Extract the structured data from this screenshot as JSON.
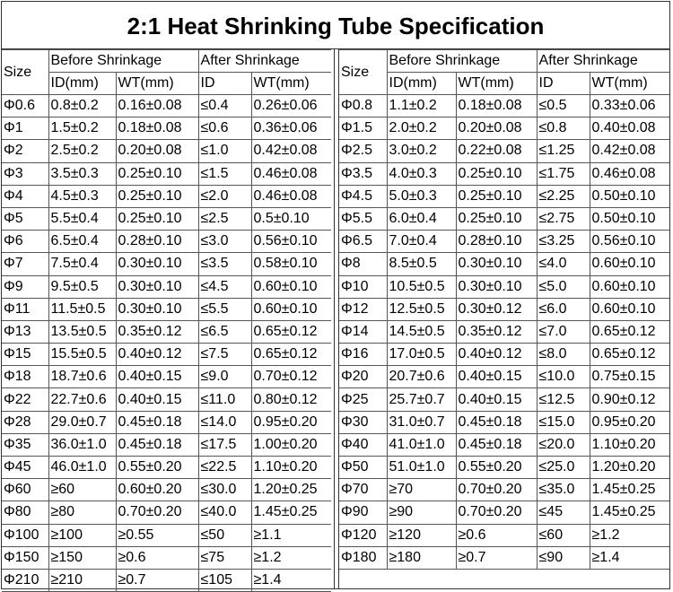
{
  "title": "2:1 Heat Shrinking Tube Specification",
  "tables": [
    {
      "headers": {
        "size": "Size",
        "before": "Before Shrinkage",
        "after": "After Shrinkage",
        "columns": [
          "ID(mm)",
          "WT(mm)",
          "ID",
          "WT(mm)"
        ]
      },
      "rows": [
        [
          "Φ0.6",
          "0.8±0.2",
          "0.16±0.08",
          "≤0.4",
          "0.26±0.06"
        ],
        [
          "Φ1",
          "1.5±0.2",
          "0.18±0.08",
          "≤0.6",
          "0.36±0.06"
        ],
        [
          "Φ2",
          "2.5±0.2",
          "0.20±0.08",
          "≤1.0",
          "0.42±0.08"
        ],
        [
          "Φ3",
          "3.5±0.3",
          "0.25±0.10",
          "≤1.5",
          "0.46±0.08"
        ],
        [
          "Φ4",
          "4.5±0.3",
          "0.25±0.10",
          "≤2.0",
          "0.46±0.08"
        ],
        [
          "Φ5",
          "5.5±0.4",
          "0.25±0.10",
          "≤2.5",
          "0.5±0.10"
        ],
        [
          "Φ6",
          "6.5±0.4",
          "0.28±0.10",
          "≤3.0",
          "0.56±0.10"
        ],
        [
          "Φ7",
          "7.5±0.4",
          "0.30±0.10",
          "≤3.5",
          "0.58±0.10"
        ],
        [
          "Φ9",
          "9.5±0.5",
          "0.30±0.10",
          "≤4.5",
          "0.60±0.10"
        ],
        [
          "Φ11",
          "11.5±0.5",
          "0.30±0.10",
          "≤5.5",
          "0.60±0.10"
        ],
        [
          "Φ13",
          "13.5±0.5",
          "0.35±0.12",
          "≤6.5",
          "0.65±0.12"
        ],
        [
          "Φ15",
          "15.5±0.5",
          "0.40±0.12",
          "≤7.5",
          "0.65±0.12"
        ],
        [
          "Φ18",
          "18.7±0.6",
          "0.40±0.15",
          "≤9.0",
          "0.70±0.12"
        ],
        [
          "Φ22",
          "22.7±0.6",
          "0.40±0.15",
          "≤11.0",
          "0.80±0.12"
        ],
        [
          "Φ28",
          "29.0±0.7",
          "0.45±0.18",
          "≤14.0",
          "0.95±0.20"
        ],
        [
          "Φ35",
          "36.0±1.0",
          "0.45±0.18",
          "≤17.5",
          "1.00±0.20"
        ],
        [
          "Φ45",
          "46.0±1.0",
          "0.55±0.20",
          "≤22.5",
          "1.10±0.20"
        ],
        [
          "Φ60",
          "≥60",
          "0.60±0.20",
          "≤30.0",
          "1.20±0.25"
        ],
        [
          "Φ80",
          "≥80",
          "0.70±0.20",
          "≤40.0",
          "1.45±0.25"
        ],
        [
          "Φ100",
          "≥100",
          "≥0.55",
          "≤50",
          "≥1.1"
        ],
        [
          "Φ150",
          "≥150",
          "≥0.6",
          "≤75",
          "≥1.2"
        ],
        [
          "Φ210",
          "≥210",
          "≥0.7",
          "≤105",
          "≥1.4"
        ]
      ]
    },
    {
      "headers": {
        "size": "Size",
        "before": "Before Shrinkage",
        "after": "After Shrinkage",
        "columns": [
          "ID(mm)",
          "WT(mm)",
          "ID",
          "WT(mm)"
        ]
      },
      "rows": [
        [
          "Φ0.8",
          "1.1±0.2",
          "0.18±0.08",
          "≤0.5",
          "0.33±0.06"
        ],
        [
          "Φ1.5",
          "2.0±0.2",
          "0.20±0.08",
          "≤0.8",
          "0.40±0.08"
        ],
        [
          "Φ2.5",
          "3.0±0.2",
          "0.22±0.08",
          "≤1.25",
          "0.42±0.08"
        ],
        [
          "Φ3.5",
          "4.0±0.3",
          "0.25±0.10",
          "≤1.75",
          "0.46±0.08"
        ],
        [
          "Φ4.5",
          "5.0±0.3",
          "0.25±0.10",
          "≤2.25",
          "0.50±0.10"
        ],
        [
          "Φ5.5",
          "6.0±0.4",
          "0.25±0.10",
          "≤2.75",
          "0.50±0.10"
        ],
        [
          "Φ6.5",
          "7.0±0.4",
          "0.28±0.10",
          "≤3.25",
          "0.56±0.10"
        ],
        [
          "Φ8",
          "8.5±0.5",
          "0.30±0.10",
          "≤4.0",
          "0.60±0.10"
        ],
        [
          "Φ10",
          "10.5±0.5",
          "0.30±0.10",
          "≤5.0",
          "0.60±0.10"
        ],
        [
          "Φ12",
          "12.5±0.5",
          "0.30±0.12",
          "≤6.0",
          "0.60±0.10"
        ],
        [
          "Φ14",
          "14.5±0.5",
          "0.35±0.12",
          "≤7.0",
          "0.65±0.12"
        ],
        [
          "Φ16",
          "17.0±0.5",
          "0.40±0.12",
          "≤8.0",
          "0.65±0.12"
        ],
        [
          "Φ20",
          "20.7±0.6",
          "0.40±0.15",
          "≤10.0",
          "0.75±0.15"
        ],
        [
          "Φ25",
          "25.7±0.7",
          "0.40±0.15",
          "≤12.5",
          "0.90±0.12"
        ],
        [
          "Φ30",
          "31.0±0.7",
          "0.45±0.18",
          "≤15.0",
          "0.95±0.20"
        ],
        [
          "Φ40",
          "41.0±1.0",
          "0.45±0.18",
          "≤20.0",
          "1.10±0.20"
        ],
        [
          "Φ50",
          "51.0±1.0",
          "0.55±0.20",
          "≤25.0",
          "1.20±0.20"
        ],
        [
          "Φ70",
          "≥70",
          "0.70±0.20",
          "≤35.0",
          "1.45±0.25"
        ],
        [
          "Φ90",
          "≥90",
          "0.70±0.20",
          "≤45",
          "1.45±0.25"
        ],
        [
          "Φ120",
          "≥120",
          "≥0.6",
          "≤60",
          "≥1.2"
        ],
        [
          "Φ180",
          "≥180",
          "≥0.7",
          "≤90",
          "≥1.4"
        ]
      ]
    }
  ]
}
